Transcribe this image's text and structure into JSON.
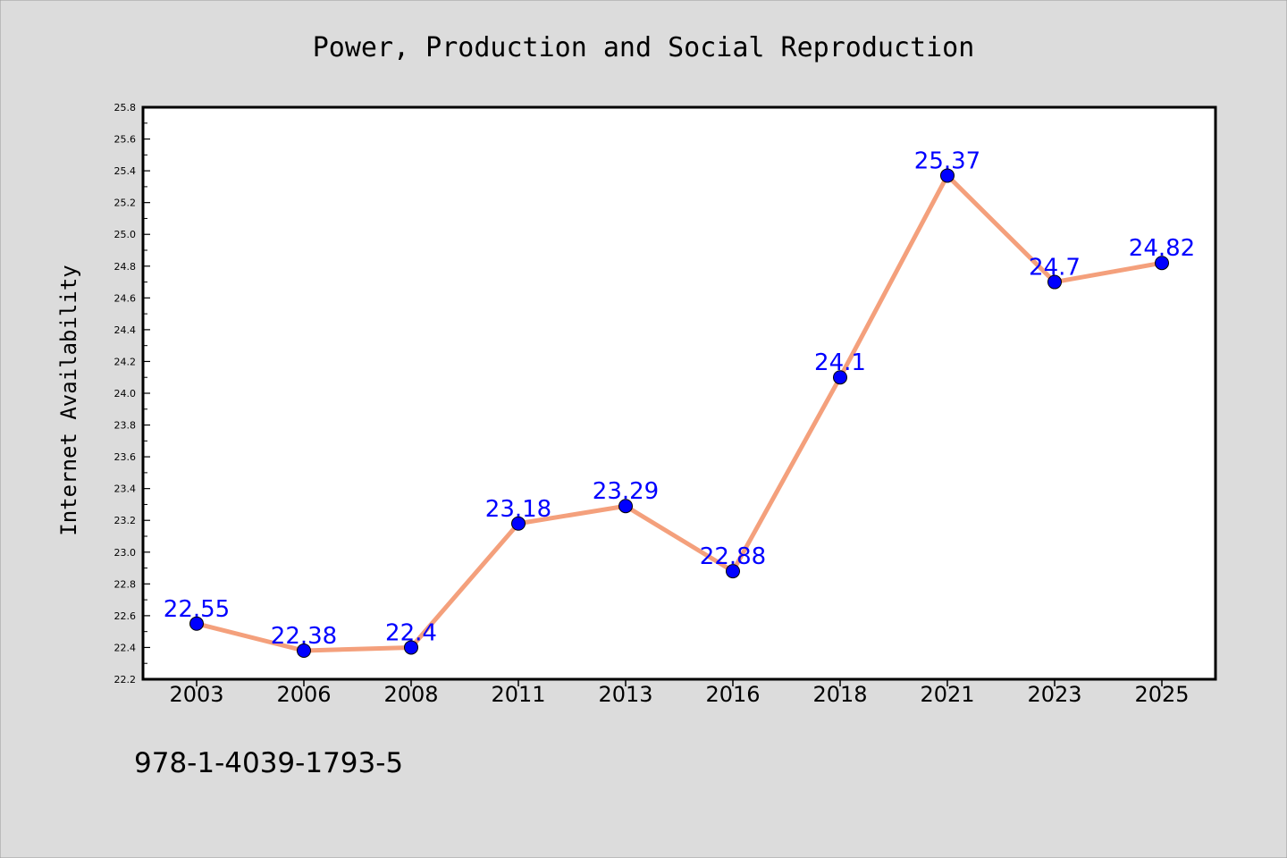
{
  "chart_data": {
    "type": "line",
    "title": "Power, Production and Social Reproduction",
    "xlabel": "",
    "ylabel": "Internet Availability",
    "categories": [
      "2003",
      "2006",
      "2008",
      "2011",
      "2013",
      "2016",
      "2018",
      "2021",
      "2023",
      "2025"
    ],
    "series": [
      {
        "values": [
          22.55,
          22.38,
          22.4,
          23.18,
          23.29,
          22.88,
          24.1,
          25.37,
          24.7,
          24.82
        ]
      }
    ],
    "data_labels": [
      "22.55",
      "22.38",
      "22.4",
      "23.18",
      "23.29",
      "22.88",
      "24.1",
      "25.37",
      "24.7",
      "24.82"
    ],
    "ylim": [
      22.2,
      25.8
    ],
    "yticks": [
      "22.2",
      "22.4",
      "22.6",
      "22.8",
      "23.0",
      "23.2",
      "23.4",
      "23.6",
      "23.8",
      "24.0",
      "24.2",
      "24.4",
      "24.6",
      "24.8",
      "25.0",
      "25.2",
      "25.4",
      "25.6",
      "25.8"
    ],
    "grid": false,
    "legend": "none",
    "colors": {
      "line": "#f4a07c",
      "marker": "#0000ff",
      "label": "#0000ff",
      "plot_background": "#ffffff",
      "page_background": "#dcdcdc"
    }
  },
  "footer": {
    "code": "978-1-4039-1793-5"
  }
}
